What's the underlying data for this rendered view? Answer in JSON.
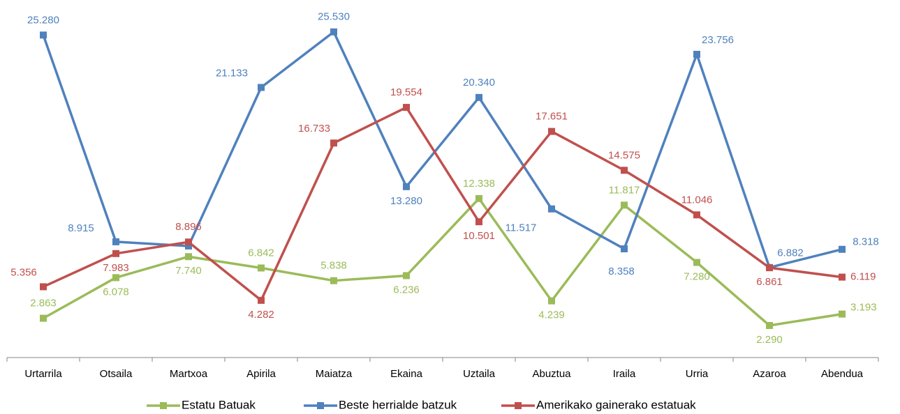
{
  "chart_data": {
    "type": "line",
    "categories": [
      "Urtarrila",
      "Otsaila",
      "Martxoa",
      "Apirila",
      "Maiatza",
      "Ekaina",
      "Uztaila",
      "Abuztua",
      "Iraila",
      "Urria",
      "Azaroa",
      "Abendua"
    ],
    "ylim": [
      0,
      28000
    ],
    "legend": "bottom",
    "series": [
      {
        "name": "Estatu Batuak",
        "color": "#9bbb59",
        "values": [
          2863,
          6078,
          7740,
          6842,
          5838,
          6236,
          12338,
          4239,
          11817,
          7280,
          2290,
          3193
        ],
        "value_labels": [
          "2.863",
          "6.078",
          "7.740",
          "6.842",
          "5.838",
          "6.236",
          "12.338",
          "4.239",
          "11.817",
          "7.280",
          "2.290",
          "3.193"
        ]
      },
      {
        "name": "Beste herrialde batzuk",
        "color": "#4f81bd",
        "values": [
          25280,
          8915,
          8582,
          21133,
          25530,
          13280,
          20340,
          11517,
          8358,
          23756,
          6882,
          8318
        ],
        "value_labels": [
          "25.280",
          "8.915",
          null,
          "21.133",
          "25.530",
          "13.280",
          "20.340",
          "11.517",
          "8.358",
          "23.756",
          "6.882",
          "8.318"
        ]
      },
      {
        "name": "Amerikako gainerako estatuak",
        "color": "#c0504d",
        "values": [
          5356,
          7983,
          8896,
          4282,
          16733,
          19554,
          10501,
          17651,
          14575,
          11046,
          6861,
          6119
        ],
        "value_labels": [
          "5.356",
          "7.983",
          "8.896",
          "4.282",
          "16.733",
          "19.554",
          "10.501",
          "17.651",
          "14.575",
          "11.046",
          "6.861",
          "6.119"
        ]
      }
    ]
  }
}
